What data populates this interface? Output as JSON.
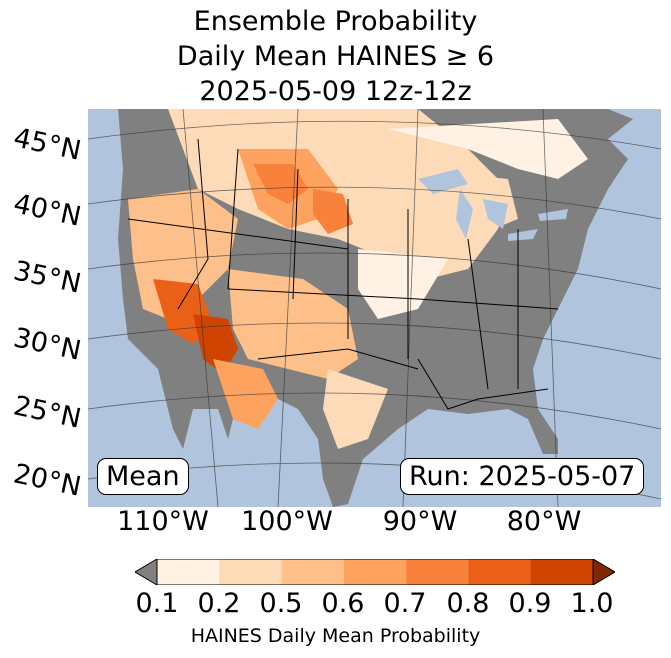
{
  "title": {
    "line1": "Ensemble Probability",
    "line2": "Daily Mean HAINES ≥ 6",
    "line3": "2025-05-09 12z-12z"
  },
  "map": {
    "mean_label": "Mean",
    "run_label": "Run: 2025-05-07",
    "lat_labels": [
      "45°N",
      "40°N",
      "35°N",
      "30°N",
      "25°N",
      "20°N"
    ],
    "lon_labels": [
      "110°W",
      "100°W",
      "90°W",
      "80°W"
    ],
    "colors": {
      "ocean": "#b0c4de",
      "below_threshold": "#808080",
      "lakes": "#b0c4de"
    }
  },
  "colorbar": {
    "label": "HAINES Daily Mean Probability",
    "ticks": [
      "0.1",
      "0.2",
      "0.5",
      "0.6",
      "0.7",
      "0.8",
      "0.9",
      "1.0"
    ],
    "under_color": "#808080",
    "over_color": "#7f2704",
    "bins": [
      "#fff1e3",
      "#fddbb8",
      "#fdc08a",
      "#fda25f",
      "#f8823c",
      "#eb6017",
      "#d04401"
    ]
  }
}
